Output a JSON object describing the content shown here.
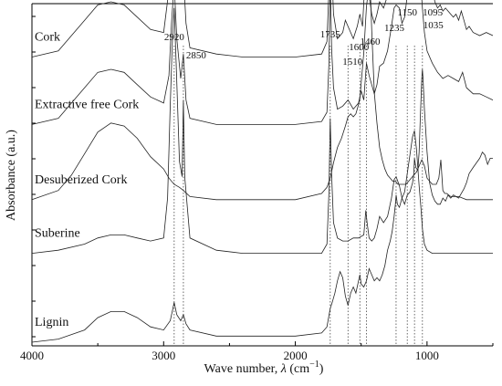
{
  "chart_data": {
    "type": "line",
    "title": "",
    "xlabel": "Wave number, λ (cm−1)",
    "xlabel_parts": {
      "main": "Wave number, ",
      "lambda": "λ",
      "unit_open": " (cm",
      "unit_exp": "−1",
      "unit_close": ")"
    },
    "ylabel": "Absorbance (a.u.)",
    "xlim": [
      4000,
      500
    ],
    "x_reversed": true,
    "x_ticks": [
      4000,
      3000,
      2000,
      1000
    ],
    "x_tick_labels": [
      "4000",
      "3000",
      "2000",
      "1000"
    ],
    "y_units": "a.u. (stacked, offset)",
    "grid": false,
    "legend": "none (series labelled inline)",
    "reference_lines": [
      {
        "x": 2920,
        "label": "2920"
      },
      {
        "x": 2850,
        "label": "2850"
      },
      {
        "x": 1735,
        "label": "1735"
      },
      {
        "x": 1600,
        "label": "1600"
      },
      {
        "x": 1510,
        "label": "1510"
      },
      {
        "x": 1460,
        "label": "1460"
      },
      {
        "x": 1235,
        "label": "1235"
      },
      {
        "x": 1150,
        "label": "1150"
      },
      {
        "x": 1095,
        "label": "1095"
      },
      {
        "x": 1035,
        "label": "1035"
      }
    ],
    "series": [
      {
        "name": "Cork",
        "baseline": 0.93,
        "x": [
          4000,
          3800,
          3600,
          3500,
          3400,
          3300,
          3200,
          3100,
          3000,
          2960,
          2940,
          2920,
          2900,
          2870,
          2850,
          2830,
          2800,
          2600,
          2400,
          2200,
          2000,
          1800,
          1760,
          1745,
          1735,
          1725,
          1710,
          1680,
          1640,
          1620,
          1600,
          1580,
          1560,
          1530,
          1510,
          1490,
          1470,
          1460,
          1440,
          1420,
          1400,
          1380,
          1360,
          1330,
          1300,
          1270,
          1250,
          1235,
          1210,
          1190,
          1170,
          1150,
          1130,
          1110,
          1095,
          1080,
          1060,
          1045,
          1035,
          1020,
          1000,
          980,
          960,
          940,
          920,
          900,
          880,
          860,
          840,
          820,
          800,
          780,
          760,
          740,
          720,
          700,
          680,
          650,
          600,
          550,
          500
        ],
        "y": [
          0.0,
          0.02,
          0.12,
          0.17,
          0.18,
          0.17,
          0.13,
          0.09,
          0.08,
          0.22,
          0.42,
          0.57,
          0.35,
          0.2,
          0.27,
          0.11,
          0.03,
          0.01,
          0.0,
          0.0,
          0.0,
          0.01,
          0.05,
          0.22,
          0.55,
          0.3,
          0.14,
          0.06,
          0.08,
          0.12,
          0.1,
          0.08,
          0.06,
          0.1,
          0.14,
          0.1,
          0.26,
          0.31,
          0.2,
          0.14,
          0.11,
          0.14,
          0.18,
          0.16,
          0.2,
          0.28,
          0.34,
          0.36,
          0.36,
          0.38,
          0.46,
          0.52,
          0.58,
          0.62,
          0.64,
          0.61,
          0.55,
          0.5,
          0.45,
          0.35,
          0.3,
          0.26,
          0.22,
          0.18,
          0.16,
          0.17,
          0.15,
          0.16,
          0.15,
          0.14,
          0.13,
          0.14,
          0.12,
          0.15,
          0.12,
          0.09,
          0.1,
          0.08,
          0.07,
          0.08,
          0.07
        ]
      },
      {
        "name": "Extractive free Cork",
        "baseline": 0.71,
        "x": [
          4000,
          3800,
          3600,
          3500,
          3400,
          3300,
          3200,
          3100,
          3000,
          2960,
          2940,
          2920,
          2900,
          2870,
          2850,
          2830,
          2800,
          2600,
          2400,
          2200,
          2000,
          1800,
          1760,
          1745,
          1735,
          1725,
          1710,
          1680,
          1640,
          1600,
          1560,
          1520,
          1500,
          1480,
          1460,
          1440,
          1400,
          1380,
          1360,
          1330,
          1300,
          1270,
          1250,
          1235,
          1210,
          1190,
          1170,
          1150,
          1130,
          1110,
          1095,
          1080,
          1060,
          1045,
          1035,
          1020,
          1000,
          960,
          920,
          880,
          840,
          800,
          760,
          730,
          700,
          650,
          600,
          550,
          500
        ],
        "y": [
          0.0,
          0.02,
          0.12,
          0.17,
          0.18,
          0.17,
          0.13,
          0.09,
          0.07,
          0.16,
          0.33,
          0.46,
          0.28,
          0.15,
          0.23,
          0.08,
          0.02,
          0.0,
          0.0,
          0.0,
          0.0,
          0.01,
          0.04,
          0.2,
          0.47,
          0.25,
          0.12,
          0.05,
          0.06,
          0.08,
          0.05,
          0.07,
          0.11,
          0.08,
          0.2,
          0.16,
          0.1,
          0.13,
          0.19,
          0.2,
          0.24,
          0.32,
          0.38,
          0.39,
          0.38,
          0.33,
          0.35,
          0.42,
          0.5,
          0.56,
          0.59,
          0.57,
          0.5,
          0.44,
          0.38,
          0.3,
          0.24,
          0.2,
          0.17,
          0.15,
          0.16,
          0.15,
          0.14,
          0.17,
          0.12,
          0.1,
          0.1,
          0.09,
          0.08
        ]
      },
      {
        "name": "Desuberized Cork",
        "baseline": 0.465,
        "x": [
          4000,
          3800,
          3700,
          3600,
          3500,
          3400,
          3300,
          3200,
          3100,
          3000,
          2960,
          2920,
          2880,
          2850,
          2800,
          2600,
          2400,
          2200,
          2000,
          1800,
          1760,
          1735,
          1710,
          1680,
          1650,
          1620,
          1600,
          1580,
          1560,
          1540,
          1520,
          1510,
          1500,
          1480,
          1460,
          1440,
          1430,
          1420,
          1400,
          1380,
          1360,
          1340,
          1320,
          1300,
          1280,
          1260,
          1240,
          1220,
          1200,
          1180,
          1160,
          1140,
          1120,
          1100,
          1080,
          1060,
          1040,
          1020,
          1000,
          960,
          930,
          910,
          895,
          880,
          865,
          850,
          820,
          800,
          760,
          700,
          650,
          600,
          550,
          500
        ],
        "y": [
          0.0,
          0.03,
          0.08,
          0.15,
          0.22,
          0.25,
          0.24,
          0.2,
          0.14,
          0.1,
          0.07,
          0.05,
          0.04,
          0.03,
          0.01,
          0.0,
          0.0,
          0.0,
          0.0,
          0.02,
          0.04,
          0.07,
          0.12,
          0.17,
          0.2,
          0.24,
          0.27,
          0.28,
          0.27,
          0.28,
          0.31,
          0.33,
          0.38,
          0.48,
          0.63,
          0.7,
          0.68,
          0.55,
          0.35,
          0.25,
          0.17,
          0.13,
          0.1,
          0.08,
          0.07,
          0.06,
          0.06,
          0.05,
          0.05,
          0.05,
          0.05,
          0.06,
          0.07,
          0.08,
          0.09,
          0.11,
          0.13,
          0.11,
          0.07,
          0.05,
          0.05,
          0.07,
          0.13,
          0.03,
          0.02,
          0.02,
          0.01,
          0.01,
          0.01,
          0.0,
          0.0,
          0.0,
          0.0,
          0.0
        ]
      },
      {
        "name": "Suberine",
        "baseline": 0.29,
        "x": [
          4000,
          3800,
          3600,
          3500,
          3400,
          3300,
          3200,
          3100,
          3000,
          2970,
          2950,
          2935,
          2920,
          2905,
          2880,
          2860,
          2850,
          2840,
          2800,
          2600,
          2400,
          2200,
          2000,
          1800,
          1760,
          1745,
          1735,
          1725,
          1710,
          1680,
          1640,
          1600,
          1560,
          1520,
          1480,
          1465,
          1455,
          1440,
          1420,
          1400,
          1380,
          1360,
          1330,
          1300,
          1270,
          1250,
          1235,
          1210,
          1190,
          1170,
          1150,
          1130,
          1110,
          1095,
          1080,
          1060,
          1045,
          1035,
          1020,
          1000,
          960,
          920,
          880,
          840,
          800,
          760,
          720,
          700,
          650,
          600,
          550,
          500
        ],
        "y": [
          0.0,
          0.01,
          0.03,
          0.05,
          0.06,
          0.06,
          0.05,
          0.04,
          0.05,
          0.18,
          0.48,
          0.68,
          0.8,
          0.62,
          0.3,
          0.25,
          0.5,
          0.25,
          0.05,
          0.01,
          0.0,
          0.0,
          0.0,
          0.0,
          0.03,
          0.2,
          0.44,
          0.26,
          0.1,
          0.05,
          0.04,
          0.04,
          0.05,
          0.05,
          0.06,
          0.14,
          0.1,
          0.05,
          0.04,
          0.05,
          0.08,
          0.12,
          0.1,
          0.12,
          0.18,
          0.24,
          0.25,
          0.22,
          0.18,
          0.2,
          0.26,
          0.32,
          0.38,
          0.4,
          0.34,
          0.22,
          0.14,
          0.08,
          0.03,
          0.01,
          0.0,
          0.0,
          0.0,
          0.0,
          0.0,
          0.0,
          0.0,
          0.0,
          0.0,
          0.0,
          0.0,
          0.0
        ]
      },
      {
        "name": "Lignin",
        "baseline": 0.0,
        "x": [
          4000,
          3800,
          3600,
          3500,
          3400,
          3300,
          3200,
          3100,
          3000,
          2950,
          2935,
          2920,
          2900,
          2870,
          2850,
          2830,
          2800,
          2600,
          2400,
          2200,
          2000,
          1800,
          1760,
          1735,
          1720,
          1700,
          1680,
          1660,
          1640,
          1620,
          1600,
          1580,
          1560,
          1540,
          1520,
          1510,
          1500,
          1480,
          1460,
          1440,
          1420,
          1400,
          1380,
          1360,
          1340,
          1320,
          1300,
          1280,
          1265,
          1250,
          1240,
          1235,
          1225,
          1210,
          1190,
          1170,
          1150,
          1130,
          1110,
          1100,
          1095,
          1085,
          1070,
          1060,
          1050,
          1040,
          1035,
          1030,
          1020,
          1000,
          980,
          960,
          940,
          920,
          900,
          880,
          860,
          840,
          820,
          800,
          760,
          720,
          700,
          680,
          650,
          600,
          580,
          560,
          540,
          520,
          500
        ],
        "y": [
          0.0,
          0.01,
          0.04,
          0.08,
          0.1,
          0.1,
          0.08,
          0.05,
          0.04,
          0.07,
          0.1,
          0.13,
          0.09,
          0.07,
          0.09,
          0.06,
          0.04,
          0.02,
          0.02,
          0.02,
          0.02,
          0.03,
          0.05,
          0.11,
          0.13,
          0.16,
          0.2,
          0.23,
          0.21,
          0.15,
          0.12,
          0.16,
          0.18,
          0.16,
          0.2,
          0.22,
          0.19,
          0.18,
          0.2,
          0.24,
          0.22,
          0.2,
          0.21,
          0.2,
          0.22,
          0.25,
          0.3,
          0.33,
          0.36,
          0.41,
          0.45,
          0.48,
          0.45,
          0.44,
          0.47,
          0.45,
          0.48,
          0.49,
          0.52,
          0.55,
          0.6,
          0.57,
          0.56,
          0.62,
          0.74,
          0.86,
          0.89,
          0.86,
          0.76,
          0.62,
          0.52,
          0.48,
          0.46,
          0.45,
          0.45,
          0.47,
          0.46,
          0.48,
          0.47,
          0.48,
          0.47,
          0.5,
          0.52,
          0.55,
          0.57,
          0.6,
          0.62,
          0.61,
          0.58,
          0.6,
          0.6
        ]
      }
    ]
  }
}
